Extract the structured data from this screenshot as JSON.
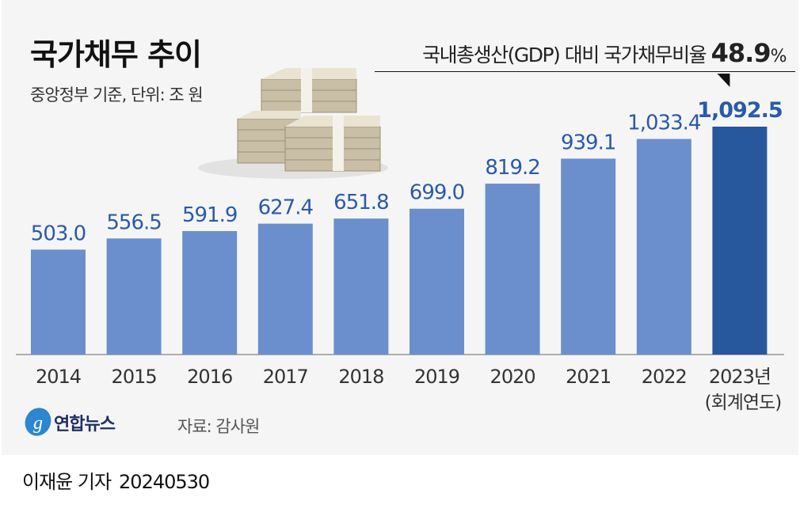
{
  "title": "국가채무 추이",
  "subtitle": "중앙정부 기준, 단위: 조 원",
  "annotation": {
    "text": "국내총생산(GDP) 대비 국가채무비율",
    "value": "48.9",
    "unit": "%"
  },
  "source": "자료: 감사원",
  "logo": "연합뉴스",
  "byline": {
    "author": "이재윤 기자",
    "date": "20240530"
  },
  "colors": {
    "bar": "#6a8fcc",
    "highlight": "#27579c",
    "label": "#2b5aa8",
    "background": "#f5f5f5"
  },
  "chart_data": {
    "type": "bar",
    "title": "국가채무 추이",
    "subtitle": "중앙정부 기준, 단위: 조 원",
    "categories": [
      "2014",
      "2015",
      "2016",
      "2017",
      "2018",
      "2019",
      "2020",
      "2021",
      "2022",
      "2023년"
    ],
    "category_note": {
      "2023년": "(회계연도)"
    },
    "values": [
      503.0,
      556.5,
      591.9,
      627.4,
      651.8,
      699.0,
      819.2,
      939.1,
      1033.4,
      1092.5
    ],
    "data_labels": [
      "503.0",
      "556.5",
      "591.9",
      "627.4",
      "651.8",
      "699.0",
      "819.2",
      "939.1",
      "1,033.4",
      "1,092.5"
    ],
    "highlight_index": 9,
    "ylim": [
      0,
      1092.5
    ],
    "grid": false
  }
}
